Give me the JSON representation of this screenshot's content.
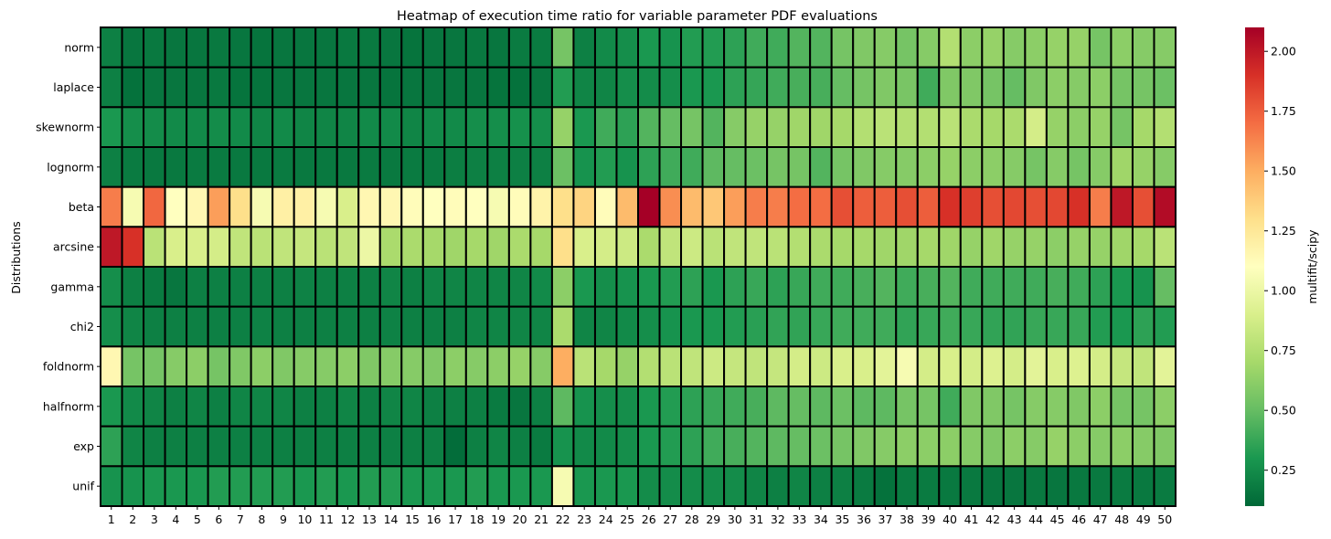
{
  "chart_data": {
    "type": "heatmap",
    "title": "Heatmap of execution time ratio for variable parameter PDF evaluations",
    "ylabel": "Distributions",
    "colorbar_label": "multifit/scipy",
    "colormap": "RdYlGn_r",
    "colorbar_ticks": [
      "0.25",
      "0.50",
      "0.75",
      "1.00",
      "1.25",
      "1.50",
      "1.75",
      "2.00"
    ],
    "value_range": [
      0.1,
      2.1
    ],
    "x": [
      "1",
      "2",
      "3",
      "4",
      "5",
      "6",
      "7",
      "8",
      "9",
      "10",
      "11",
      "12",
      "13",
      "14",
      "15",
      "16",
      "17",
      "18",
      "19",
      "20",
      "21",
      "22",
      "23",
      "24",
      "25",
      "26",
      "27",
      "28",
      "29",
      "30",
      "31",
      "32",
      "33",
      "34",
      "35",
      "36",
      "37",
      "38",
      "39",
      "40",
      "41",
      "42",
      "43",
      "44",
      "45",
      "46",
      "47",
      "48",
      "49",
      "50"
    ],
    "rows": [
      "norm",
      "laplace",
      "skewnorm",
      "lognorm",
      "beta",
      "arcsine",
      "gamma",
      "chi2",
      "foldnorm",
      "halfnorm",
      "exp",
      "unif"
    ],
    "values": [
      [
        0.2,
        0.16,
        0.17,
        0.16,
        0.16,
        0.17,
        0.16,
        0.15,
        0.16,
        0.16,
        0.16,
        0.17,
        0.17,
        0.16,
        0.15,
        0.16,
        0.16,
        0.17,
        0.16,
        0.18,
        0.18,
        0.55,
        0.2,
        0.24,
        0.26,
        0.3,
        0.28,
        0.32,
        0.32,
        0.35,
        0.4,
        0.4,
        0.45,
        0.45,
        0.55,
        0.58,
        0.6,
        0.55,
        0.6,
        0.75,
        0.62,
        0.65,
        0.6,
        0.62,
        0.65,
        0.65,
        0.55,
        0.62,
        0.6,
        0.6
      ],
      [
        0.2,
        0.14,
        0.16,
        0.16,
        0.16,
        0.17,
        0.15,
        0.15,
        0.16,
        0.16,
        0.16,
        0.16,
        0.16,
        0.15,
        0.16,
        0.16,
        0.16,
        0.16,
        0.15,
        0.14,
        0.16,
        0.32,
        0.22,
        0.22,
        0.26,
        0.25,
        0.26,
        0.3,
        0.3,
        0.35,
        0.37,
        0.4,
        0.42,
        0.42,
        0.5,
        0.55,
        0.58,
        0.56,
        0.4,
        0.58,
        0.58,
        0.55,
        0.5,
        0.58,
        0.62,
        0.6,
        0.62,
        0.55,
        0.55,
        0.52
      ],
      [
        0.3,
        0.26,
        0.25,
        0.24,
        0.24,
        0.25,
        0.24,
        0.22,
        0.24,
        0.22,
        0.22,
        0.22,
        0.24,
        0.24,
        0.22,
        0.24,
        0.24,
        0.26,
        0.26,
        0.27,
        0.26,
        0.65,
        0.3,
        0.4,
        0.35,
        0.45,
        0.5,
        0.55,
        0.45,
        0.6,
        0.65,
        0.65,
        0.68,
        0.68,
        0.7,
        0.75,
        0.78,
        0.75,
        0.75,
        0.78,
        0.72,
        0.7,
        0.72,
        0.88,
        0.65,
        0.62,
        0.65,
        0.55,
        0.7,
        0.75
      ],
      [
        0.2,
        0.18,
        0.17,
        0.17,
        0.18,
        0.18,
        0.17,
        0.17,
        0.18,
        0.17,
        0.17,
        0.17,
        0.18,
        0.17,
        0.18,
        0.18,
        0.19,
        0.2,
        0.2,
        0.2,
        0.2,
        0.52,
        0.28,
        0.32,
        0.28,
        0.35,
        0.4,
        0.4,
        0.48,
        0.5,
        0.52,
        0.55,
        0.55,
        0.45,
        0.55,
        0.58,
        0.6,
        0.6,
        0.62,
        0.65,
        0.62,
        0.62,
        0.6,
        0.55,
        0.6,
        0.55,
        0.6,
        0.68,
        0.65,
        0.6
      ],
      [
        1.65,
        1.05,
        1.72,
        1.1,
        1.15,
        1.55,
        1.3,
        1.05,
        1.2,
        1.2,
        1.05,
        0.9,
        1.15,
        1.15,
        1.12,
        1.1,
        1.12,
        1.1,
        1.05,
        1.12,
        1.18,
        1.3,
        1.35,
        1.12,
        1.45,
        2.1,
        1.6,
        1.45,
        1.4,
        1.55,
        1.65,
        1.65,
        1.7,
        1.7,
        1.8,
        1.75,
        1.75,
        1.8,
        1.75,
        1.9,
        1.85,
        1.8,
        1.82,
        1.8,
        1.82,
        1.9,
        1.65,
        2.0,
        1.8,
        2.05
      ],
      [
        2.0,
        1.9,
        0.78,
        0.9,
        0.9,
        0.88,
        0.8,
        0.78,
        0.8,
        0.82,
        0.78,
        0.8,
        1.0,
        0.72,
        0.72,
        0.7,
        0.68,
        0.7,
        0.68,
        0.72,
        0.7,
        1.3,
        0.9,
        0.88,
        0.85,
        0.72,
        0.8,
        0.85,
        0.78,
        0.8,
        0.8,
        0.78,
        0.75,
        0.72,
        0.7,
        0.7,
        0.68,
        0.68,
        0.7,
        0.68,
        0.65,
        0.68,
        0.65,
        0.65,
        0.62,
        0.65,
        0.65,
        0.68,
        0.7,
        0.78
      ],
      [
        0.26,
        0.2,
        0.18,
        0.16,
        0.2,
        0.2,
        0.2,
        0.2,
        0.2,
        0.21,
        0.2,
        0.2,
        0.2,
        0.22,
        0.2,
        0.22,
        0.22,
        0.22,
        0.22,
        0.22,
        0.24,
        0.62,
        0.3,
        0.26,
        0.28,
        0.3,
        0.32,
        0.35,
        0.3,
        0.35,
        0.38,
        0.35,
        0.38,
        0.4,
        0.4,
        0.42,
        0.45,
        0.4,
        0.42,
        0.45,
        0.4,
        0.4,
        0.4,
        0.4,
        0.42,
        0.4,
        0.35,
        0.3,
        0.28,
        0.5
      ],
      [
        0.26,
        0.22,
        0.2,
        0.2,
        0.2,
        0.2,
        0.2,
        0.21,
        0.2,
        0.2,
        0.2,
        0.2,
        0.2,
        0.21,
        0.2,
        0.2,
        0.2,
        0.22,
        0.22,
        0.22,
        0.22,
        0.72,
        0.22,
        0.22,
        0.24,
        0.26,
        0.28,
        0.3,
        0.3,
        0.32,
        0.34,
        0.36,
        0.36,
        0.38,
        0.4,
        0.4,
        0.4,
        0.36,
        0.38,
        0.4,
        0.38,
        0.36,
        0.36,
        0.38,
        0.38,
        0.38,
        0.32,
        0.3,
        0.35,
        0.32
      ],
      [
        1.15,
        0.55,
        0.55,
        0.6,
        0.62,
        0.55,
        0.58,
        0.62,
        0.58,
        0.6,
        0.6,
        0.62,
        0.58,
        0.6,
        0.6,
        0.58,
        0.62,
        0.6,
        0.62,
        0.65,
        0.6,
        1.5,
        0.78,
        0.7,
        0.65,
        0.75,
        0.78,
        0.8,
        0.85,
        0.82,
        0.8,
        0.82,
        0.88,
        0.85,
        0.9,
        0.9,
        0.95,
        1.05,
        0.88,
        0.9,
        0.88,
        0.92,
        0.88,
        0.95,
        0.9,
        0.92,
        0.88,
        0.82,
        0.8,
        0.95
      ],
      [
        0.3,
        0.24,
        0.22,
        0.2,
        0.22,
        0.2,
        0.22,
        0.22,
        0.22,
        0.2,
        0.2,
        0.22,
        0.2,
        0.22,
        0.22,
        0.2,
        0.2,
        0.2,
        0.18,
        0.16,
        0.2,
        0.48,
        0.28,
        0.26,
        0.26,
        0.3,
        0.32,
        0.35,
        0.38,
        0.4,
        0.42,
        0.48,
        0.5,
        0.48,
        0.52,
        0.48,
        0.48,
        0.55,
        0.55,
        0.4,
        0.58,
        0.58,
        0.55,
        0.6,
        0.6,
        0.58,
        0.62,
        0.55,
        0.55,
        0.62
      ],
      [
        0.35,
        0.22,
        0.2,
        0.2,
        0.2,
        0.2,
        0.2,
        0.2,
        0.2,
        0.2,
        0.2,
        0.2,
        0.2,
        0.2,
        0.2,
        0.2,
        0.12,
        0.2,
        0.22,
        0.2,
        0.18,
        0.28,
        0.24,
        0.24,
        0.26,
        0.3,
        0.32,
        0.35,
        0.4,
        0.42,
        0.45,
        0.48,
        0.5,
        0.52,
        0.55,
        0.58,
        0.6,
        0.62,
        0.62,
        0.62,
        0.6,
        0.58,
        0.62,
        0.6,
        0.65,
        0.62,
        0.6,
        0.62,
        0.6,
        0.58
      ],
      [
        0.28,
        0.28,
        0.3,
        0.3,
        0.3,
        0.32,
        0.32,
        0.32,
        0.32,
        0.3,
        0.32,
        0.3,
        0.32,
        0.32,
        0.3,
        0.3,
        0.3,
        0.32,
        0.3,
        0.3,
        0.3,
        1.05,
        0.3,
        0.3,
        0.3,
        0.25,
        0.25,
        0.25,
        0.25,
        0.25,
        0.22,
        0.2,
        0.22,
        0.2,
        0.2,
        0.18,
        0.14,
        0.18,
        0.18,
        0.17,
        0.17,
        0.16,
        0.16,
        0.17,
        0.16,
        0.17,
        0.17,
        0.18,
        0.17,
        0.18
      ]
    ]
  }
}
